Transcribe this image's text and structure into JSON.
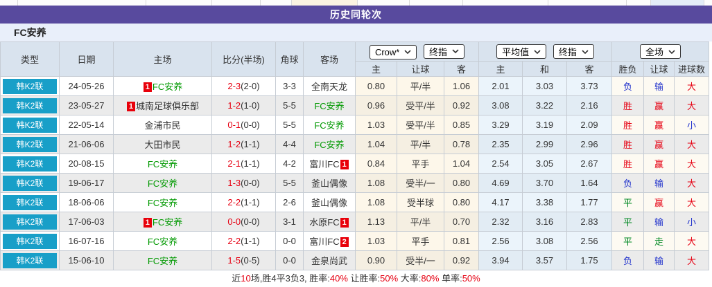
{
  "header": {
    "title": "历史同轮次"
  },
  "team": {
    "name": "FC安养"
  },
  "controls": {
    "selects": [
      "Crow*",
      "终指",
      "平均值",
      "终指",
      "全场"
    ]
  },
  "table": {
    "headers": {
      "type": "类型",
      "date": "日期",
      "home": "主场",
      "score": "比分(半场)",
      "corners": "角球",
      "away": "客场",
      "crown_home": "主",
      "crown_handicap": "让球",
      "crown_away": "客",
      "avg_home": "主",
      "avg_draw": "和",
      "avg_away": "客",
      "full_wdl": "胜负",
      "full_handicap": "让球",
      "full_goals": "进球数"
    },
    "colors": {
      "accent_purple": "#584a9e",
      "league_teal": "#189fc8",
      "badge_red": "#e8000a",
      "team_green": "#009900",
      "win_red": "#e60012",
      "lose_blue": "#2233cc",
      "draw_green": "#008822"
    },
    "rows": [
      {
        "league": "韩K2联",
        "date": "24-05-26",
        "home": {
          "name": "FC安养",
          "green": true,
          "badge": "1",
          "badge_pos": "before"
        },
        "score": "2-3",
        "half": "(2-0)",
        "corners": "3-3",
        "away": {
          "name": "全南天龙",
          "green": false
        },
        "crown": {
          "home": "0.80",
          "handicap": "平/半",
          "away": "1.06"
        },
        "avg": {
          "home": "2.01",
          "draw": "3.03",
          "away": "3.73"
        },
        "result": {
          "wdl": {
            "text": "负",
            "color": "blue"
          },
          "handicap": {
            "text": "输",
            "color": "blue"
          },
          "goals": {
            "text": "大",
            "color": "red"
          }
        }
      },
      {
        "league": "韩K2联",
        "date": "23-05-27",
        "home": {
          "name": "城南足球俱乐部",
          "green": false,
          "badge": "1",
          "badge_pos": "before"
        },
        "score": "1-2",
        "half": "(1-0)",
        "corners": "5-5",
        "away": {
          "name": "FC安养",
          "green": true
        },
        "crown": {
          "home": "0.96",
          "handicap": "受平/半",
          "away": "0.92"
        },
        "avg": {
          "home": "3.08",
          "draw": "3.22",
          "away": "2.16"
        },
        "result": {
          "wdl": {
            "text": "胜",
            "color": "red"
          },
          "handicap": {
            "text": "赢",
            "color": "red"
          },
          "goals": {
            "text": "大",
            "color": "red"
          }
        }
      },
      {
        "league": "韩K2联",
        "date": "22-05-14",
        "home": {
          "name": "金浦市民",
          "green": false
        },
        "score": "0-1",
        "half": "(0-0)",
        "corners": "5-5",
        "away": {
          "name": "FC安养",
          "green": true
        },
        "crown": {
          "home": "1.03",
          "handicap": "受平/半",
          "away": "0.85"
        },
        "avg": {
          "home": "3.29",
          "draw": "3.19",
          "away": "2.09"
        },
        "result": {
          "wdl": {
            "text": "胜",
            "color": "red"
          },
          "handicap": {
            "text": "赢",
            "color": "red"
          },
          "goals": {
            "text": "小",
            "color": "blue"
          }
        }
      },
      {
        "league": "韩K2联",
        "date": "21-06-06",
        "home": {
          "name": "大田市民",
          "green": false
        },
        "score": "1-2",
        "half": "(1-1)",
        "corners": "4-4",
        "away": {
          "name": "FC安养",
          "green": true
        },
        "crown": {
          "home": "1.04",
          "handicap": "平/半",
          "away": "0.78"
        },
        "avg": {
          "home": "2.35",
          "draw": "2.99",
          "away": "2.96"
        },
        "result": {
          "wdl": {
            "text": "胜",
            "color": "red"
          },
          "handicap": {
            "text": "赢",
            "color": "red"
          },
          "goals": {
            "text": "大",
            "color": "red"
          }
        }
      },
      {
        "league": "韩K2联",
        "date": "20-08-15",
        "home": {
          "name": "FC安养",
          "green": true
        },
        "score": "2-1",
        "half": "(1-1)",
        "corners": "4-2",
        "away": {
          "name": "富川FC",
          "green": false,
          "badge": "1",
          "badge_pos": "after"
        },
        "crown": {
          "home": "0.84",
          "handicap": "平手",
          "away": "1.04"
        },
        "avg": {
          "home": "2.54",
          "draw": "3.05",
          "away": "2.67"
        },
        "result": {
          "wdl": {
            "text": "胜",
            "color": "red"
          },
          "handicap": {
            "text": "赢",
            "color": "red"
          },
          "goals": {
            "text": "大",
            "color": "red"
          }
        }
      },
      {
        "league": "韩K2联",
        "date": "19-06-17",
        "home": {
          "name": "FC安养",
          "green": true
        },
        "score": "1-3",
        "half": "(0-0)",
        "corners": "5-5",
        "away": {
          "name": "釜山偶像",
          "green": false
        },
        "crown": {
          "home": "1.08",
          "handicap": "受半/一",
          "away": "0.80"
        },
        "avg": {
          "home": "4.69",
          "draw": "3.70",
          "away": "1.64"
        },
        "result": {
          "wdl": {
            "text": "负",
            "color": "blue"
          },
          "handicap": {
            "text": "输",
            "color": "blue"
          },
          "goals": {
            "text": "大",
            "color": "red"
          }
        }
      },
      {
        "league": "韩K2联",
        "date": "18-06-06",
        "home": {
          "name": "FC安养",
          "green": true
        },
        "score": "2-2",
        "half": "(1-1)",
        "corners": "2-6",
        "away": {
          "name": "釜山偶像",
          "green": false
        },
        "crown": {
          "home": "1.08",
          "handicap": "受半球",
          "away": "0.80"
        },
        "avg": {
          "home": "4.17",
          "draw": "3.38",
          "away": "1.77"
        },
        "result": {
          "wdl": {
            "text": "平",
            "color": "green"
          },
          "handicap": {
            "text": "赢",
            "color": "red"
          },
          "goals": {
            "text": "大",
            "color": "red"
          }
        }
      },
      {
        "league": "韩K2联",
        "date": "17-06-03",
        "home": {
          "name": "FC安养",
          "green": true,
          "badge": "1",
          "badge_pos": "before"
        },
        "score": "0-0",
        "half": "(0-0)",
        "corners": "3-1",
        "away": {
          "name": "水原FC",
          "green": false,
          "badge": "1",
          "badge_pos": "after"
        },
        "crown": {
          "home": "1.13",
          "handicap": "平/半",
          "away": "0.70"
        },
        "avg": {
          "home": "2.32",
          "draw": "3.16",
          "away": "2.83"
        },
        "result": {
          "wdl": {
            "text": "平",
            "color": "green"
          },
          "handicap": {
            "text": "输",
            "color": "blue"
          },
          "goals": {
            "text": "小",
            "color": "blue"
          }
        }
      },
      {
        "league": "韩K2联",
        "date": "16-07-16",
        "home": {
          "name": "FC安养",
          "green": true
        },
        "score": "2-2",
        "half": "(1-1)",
        "corners": "0-0",
        "away": {
          "name": "富川FC",
          "green": false,
          "badge": "2",
          "badge_pos": "after"
        },
        "crown": {
          "home": "1.03",
          "handicap": "平手",
          "away": "0.81"
        },
        "avg": {
          "home": "2.56",
          "draw": "3.08",
          "away": "2.56"
        },
        "result": {
          "wdl": {
            "text": "平",
            "color": "green"
          },
          "handicap": {
            "text": "走",
            "color": "green"
          },
          "goals": {
            "text": "大",
            "color": "red"
          }
        }
      },
      {
        "league": "韩K2联",
        "date": "15-06-10",
        "home": {
          "name": "FC安养",
          "green": true
        },
        "score": "1-5",
        "half": "(0-5)",
        "corners": "0-0",
        "away": {
          "name": "金泉尚武",
          "green": false
        },
        "crown": {
          "home": "0.90",
          "handicap": "受半/一",
          "away": "0.92"
        },
        "avg": {
          "home": "3.94",
          "draw": "3.57",
          "away": "1.75"
        },
        "result": {
          "wdl": {
            "text": "负",
            "color": "blue"
          },
          "handicap": {
            "text": "输",
            "color": "blue"
          },
          "goals": {
            "text": "大",
            "color": "red"
          }
        }
      }
    ]
  },
  "summary": {
    "segments": [
      {
        "text": "近",
        "red": false
      },
      {
        "text": "10",
        "red": true
      },
      {
        "text": "场,胜4平3负3, 胜率:",
        "red": false
      },
      {
        "text": "40%",
        "red": true
      },
      {
        "text": " 让胜率:",
        "red": false
      },
      {
        "text": "50%",
        "red": true
      },
      {
        "text": " 大率:",
        "red": false
      },
      {
        "text": "80%",
        "red": true
      },
      {
        "text": " 单率:",
        "red": false
      },
      {
        "text": "50%",
        "red": true
      }
    ]
  }
}
